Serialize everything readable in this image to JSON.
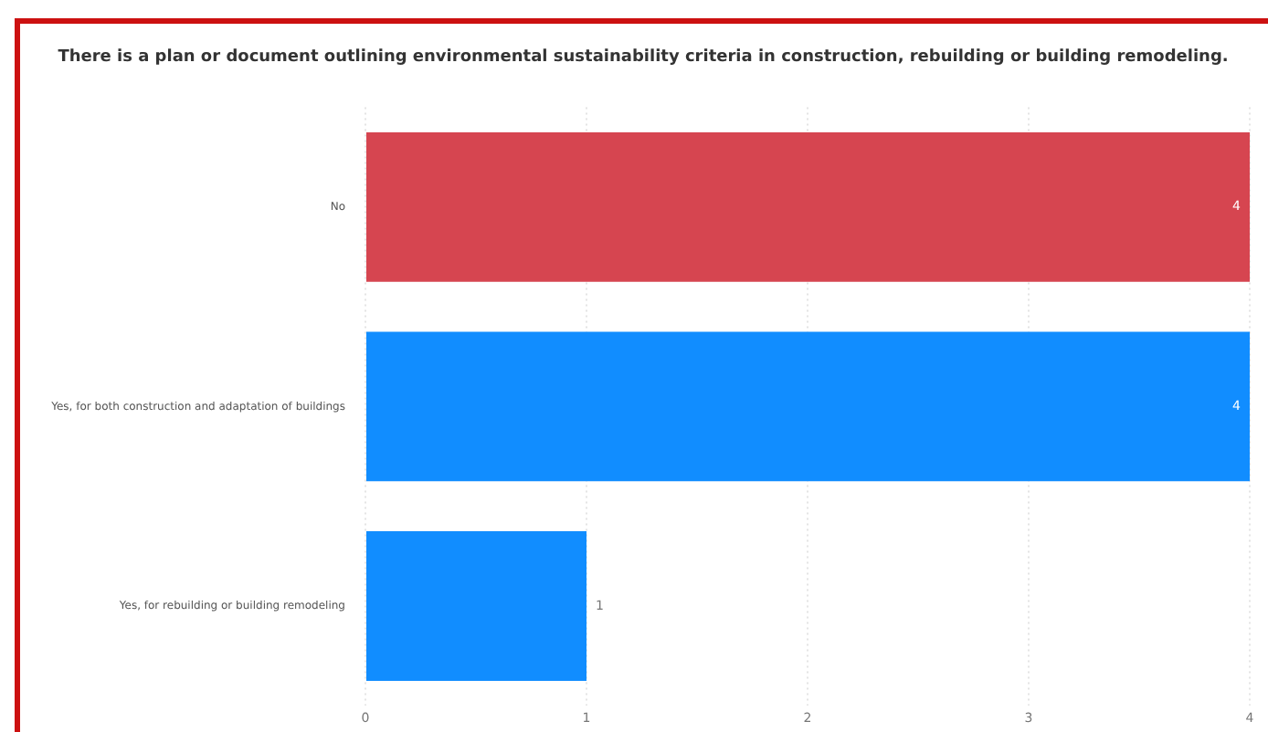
{
  "chart_data": {
    "type": "bar",
    "orientation": "horizontal",
    "title": "There is a plan or document outlining environmental sustainability criteria in construction, rebuilding or building remodeling.",
    "categories": [
      "No",
      "Yes, for both construction and adaptation of buildings",
      "Yes, for rebuilding or building remodeling"
    ],
    "values": [
      4,
      4,
      1
    ],
    "colors": [
      "#d64550",
      "#118dff",
      "#118dff"
    ],
    "xlim": [
      0,
      4
    ],
    "xticks": [
      0,
      1,
      2,
      3,
      4
    ],
    "grid": "x",
    "data_labels": true
  }
}
